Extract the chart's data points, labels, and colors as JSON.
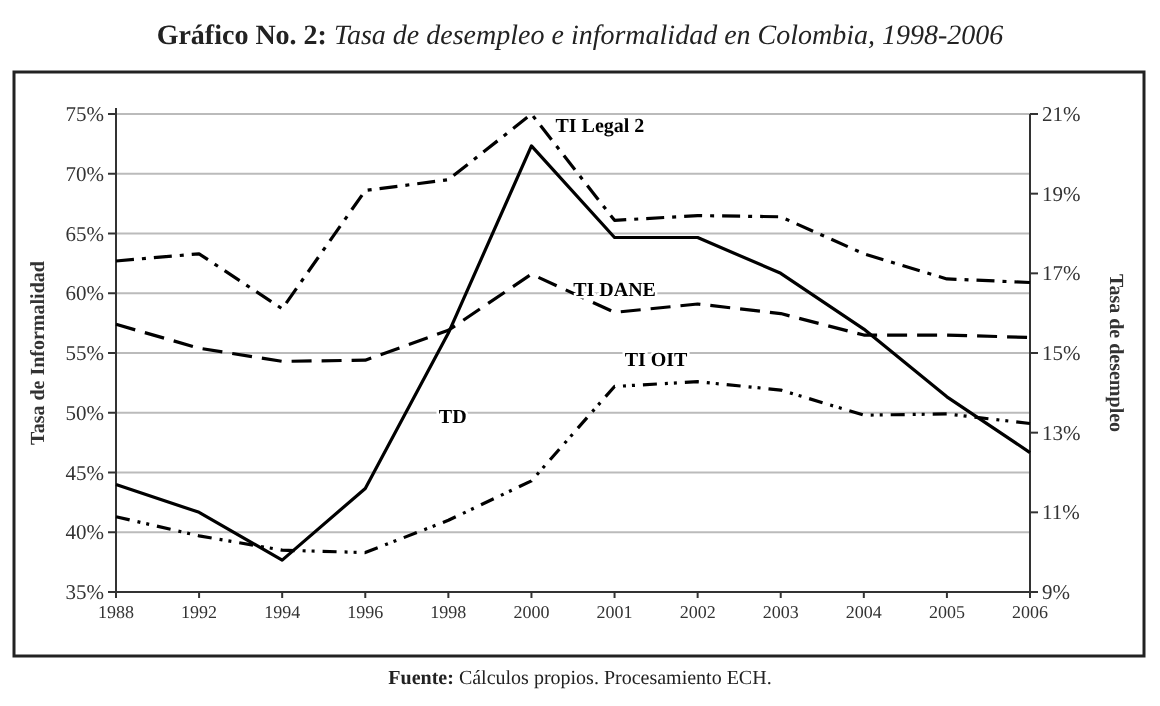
{
  "chart_data": {
    "type": "line",
    "title": "Gráfico No. 2: Tasa de desempleo e informalidad en Colombia, 1998-2006",
    "ylabel": "Tasa de Informalidad",
    "y2label": "Tasa de desempleo",
    "categories": [
      "1988",
      "1992",
      "1994",
      "1996",
      "1998",
      "2000",
      "2001",
      "2002",
      "2003",
      "2004",
      "2005",
      "2006"
    ],
    "series": [
      {
        "name": "TI Legal 2",
        "color": "#000000",
        "line_style": "dashed",
        "values": [
          62.7,
          63.3,
          58.7,
          68.6,
          69.5,
          75,
          66.1,
          66.5,
          66.4,
          63.3,
          61.2,
          60.9
        ]
      },
      {
        "name": "TI DANE",
        "color": "#000000",
        "line_style": "dashed",
        "values": [
          57.4,
          55.4,
          54.3,
          54.4,
          56.9,
          61.6,
          58.4,
          59.1,
          58.3,
          56.5,
          56.5,
          56.3
        ]
      },
      {
        "name": "TI OIT",
        "color": "#000000",
        "line_style": "dotted",
        "values": [
          41.3,
          39.7,
          38.5,
          38.3,
          41.0,
          44.3,
          52.2,
          52.6,
          51.9,
          49.8,
          49.9,
          49.1
        ]
      },
      {
        "name": "TD",
        "color": "#000000",
        "line_style": "solid",
        "axis": "y2",
        "values": [
          11.7,
          11.0,
          9.8,
          11.6,
          15.5,
          20.2,
          17.9,
          17.9,
          17.0,
          15.6,
          13.9,
          12.5
        ]
      }
    ],
    "ylim": [
      35,
      75
    ],
    "yticks": [
      {
        "value": 35,
        "label": "35%"
      },
      {
        "value": 40,
        "label": "40%"
      },
      {
        "value": 45,
        "label": "45%"
      },
      {
        "value": 50,
        "label": "50%"
      },
      {
        "value": 55,
        "label": "55%"
      },
      {
        "value": 60,
        "label": "60%"
      },
      {
        "value": 65,
        "label": "65%"
      },
      {
        "value": 70,
        "label": "70%"
      },
      {
        "value": 75,
        "label": "75%"
      }
    ],
    "y2lim": [
      9,
      21
    ],
    "y2ticks": [
      {
        "value": 9,
        "label": "9%"
      },
      {
        "value": 11,
        "label": "11%"
      },
      {
        "value": 13,
        "label": "13%"
      },
      {
        "value": 15,
        "label": "15%"
      },
      {
        "value": 17,
        "label": "17%"
      },
      {
        "value": 19,
        "label": "19%"
      },
      {
        "value": 21,
        "label": "21%"
      }
    ],
    "grid": "y",
    "legend": false,
    "annotations": [
      "Fuente: Cálculos propios. Procesamiento ECH."
    ]
  }
}
